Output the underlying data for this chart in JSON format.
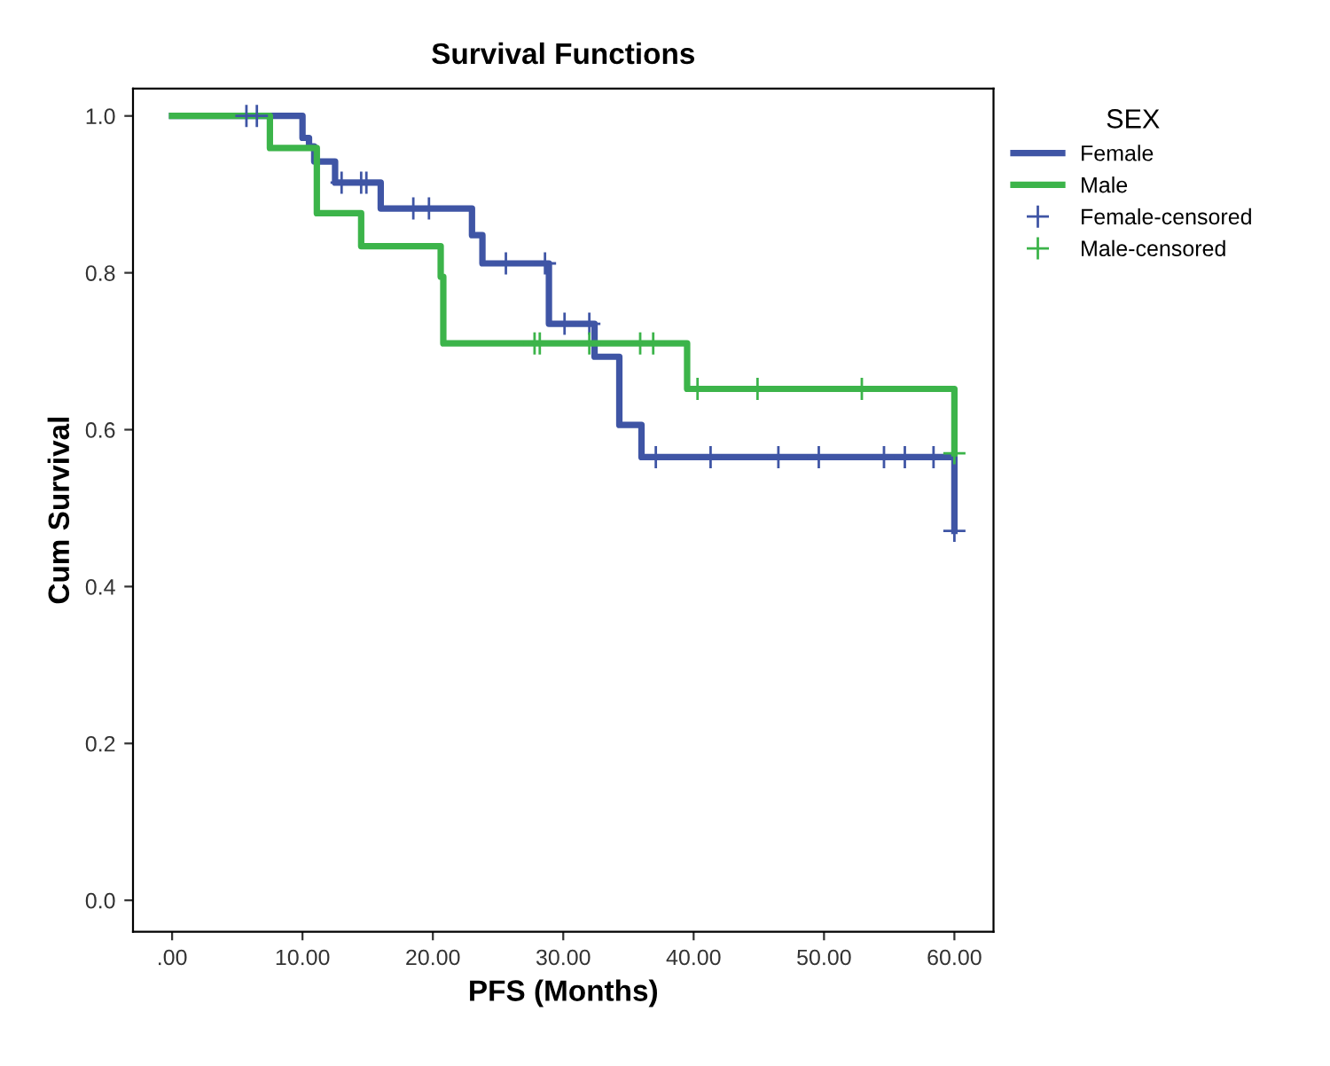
{
  "chart_data": {
    "type": "step",
    "title": "Survival Functions",
    "xlabel": "PFS (Months)",
    "ylabel": "Cum Survival",
    "legend_title": "SEX",
    "legend": "right",
    "grid": false,
    "xlim": [
      -3,
      63
    ],
    "ylim": [
      -0.04,
      1.035
    ],
    "xticks": [
      {
        "value": 0,
        "label": ".00"
      },
      {
        "value": 10,
        "label": "10.00"
      },
      {
        "value": 20,
        "label": "20.00"
      },
      {
        "value": 30,
        "label": "30.00"
      },
      {
        "value": 40,
        "label": "40.00"
      },
      {
        "value": 50,
        "label": "50.00"
      },
      {
        "value": 60,
        "label": "60.00"
      }
    ],
    "yticks": [
      {
        "value": 0,
        "label": "0.0"
      },
      {
        "value": 0.2,
        "label": "0.2"
      },
      {
        "value": 0.4,
        "label": "0.4"
      },
      {
        "value": 0.6,
        "label": "0.6"
      },
      {
        "value": 0.8,
        "label": "0.8"
      },
      {
        "value": 1,
        "label": "1.0"
      }
    ],
    "series": [
      {
        "name": "Female",
        "type": "step",
        "color": "#3f55a5",
        "marker": "none",
        "x": [
          0,
          10.0,
          10.5,
          10.9,
          12.5,
          16.0,
          23.0,
          23.8,
          28.9,
          32.4,
          34.3,
          36.0,
          60
        ],
        "values": [
          1,
          0.972,
          0.961,
          0.942,
          0.915,
          0.882,
          0.848,
          0.812,
          0.735,
          0.693,
          0.606,
          0.565,
          0.471
        ]
      },
      {
        "name": "Male",
        "type": "step",
        "color": "#3cb44a",
        "marker": "none",
        "x": [
          0,
          7.5,
          11.1,
          14.5,
          20.6,
          20.8,
          39.5,
          60
        ],
        "values": [
          1,
          0.959,
          0.876,
          0.834,
          0.795,
          0.71,
          0.652,
          0.57
        ]
      },
      {
        "name": "Female-censored",
        "type": "scatter",
        "color": "#3f55a5",
        "marker": "cross",
        "x": [
          5.7,
          6.5,
          13.0,
          14.5,
          14.9,
          18.5,
          19.7,
          25.6,
          28.6,
          30.1,
          32.0,
          37.1,
          41.3,
          46.5,
          49.6,
          54.6,
          56.2,
          58.4,
          60
        ],
        "values": [
          1,
          1,
          0.915,
          0.915,
          0.915,
          0.882,
          0.882,
          0.812,
          0.812,
          0.735,
          0.735,
          0.565,
          0.565,
          0.565,
          0.565,
          0.565,
          0.565,
          0.565,
          0.471
        ]
      },
      {
        "name": "Male-censored",
        "type": "scatter",
        "color": "#3cb44a",
        "marker": "cross",
        "x": [
          27.8,
          28.2,
          32.0,
          35.9,
          36.9,
          40.3,
          44.9,
          52.9,
          60
        ],
        "values": [
          0.71,
          0.71,
          0.71,
          0.71,
          0.71,
          0.652,
          0.652,
          0.652,
          0.57
        ]
      }
    ]
  }
}
